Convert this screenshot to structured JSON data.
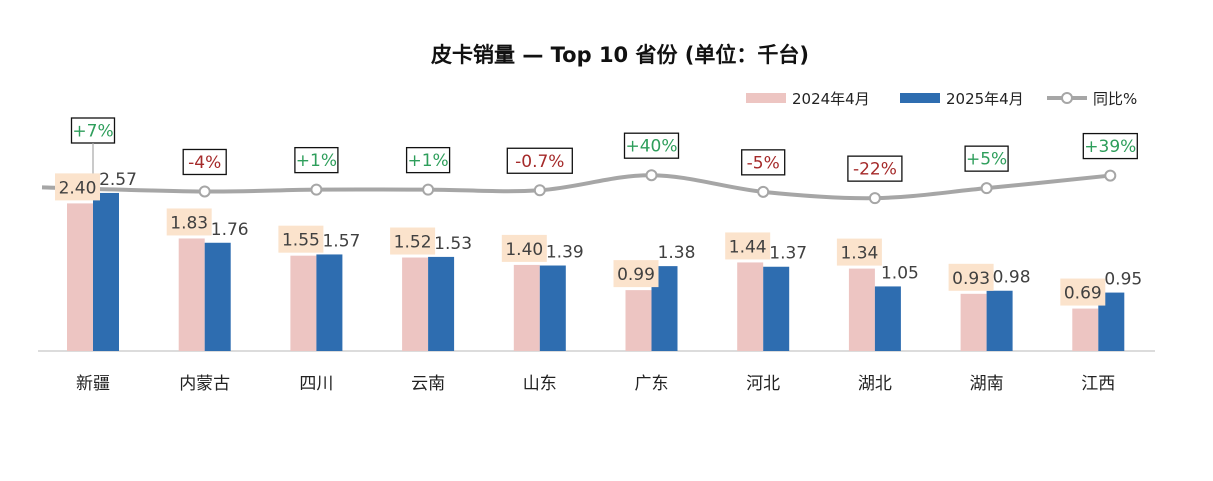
{
  "chart_data": {
    "type": "bar",
    "title": "皮卡销量 — Top 10 省份 (单位：千台)",
    "categories": [
      "新疆",
      "内蒙古",
      "四川",
      "云南",
      "山东",
      "广东",
      "河北",
      "湖北",
      "湖南",
      "江西"
    ],
    "series": [
      {
        "name": "2024年4月",
        "values": [
          2.4,
          1.83,
          1.55,
          1.52,
          1.4,
          0.99,
          1.44,
          1.34,
          0.93,
          0.69
        ],
        "labels": [
          "2.40",
          "1.83",
          "1.55",
          "1.52",
          "1.40",
          "0.99",
          "1.44",
          "1.34",
          "0.93",
          "0.69"
        ],
        "color": "#EDC5C2",
        "label_bg": "#FBE3CC"
      },
      {
        "name": "2025年4月",
        "values": [
          2.57,
          1.76,
          1.57,
          1.53,
          1.39,
          1.38,
          1.37,
          1.05,
          0.98,
          0.95
        ],
        "labels": [
          "2.57",
          "1.76",
          "1.57",
          "1.53",
          "1.39",
          "1.38",
          "1.37",
          "1.05",
          "0.98",
          "0.95"
        ],
        "color": "#2E6DB0"
      }
    ],
    "yoy": {
      "name": "同比%",
      "values": [
        7,
        -4,
        1,
        1,
        -0.7,
        40,
        -5,
        -22,
        5,
        39
      ],
      "labels": [
        "+7%",
        "-4%",
        "+1%",
        "+1%",
        "-0.7%",
        "+40%",
        "-5%",
        "-22%",
        "+5%",
        "+39%"
      ],
      "line_color": "#A6A6A6",
      "positive_color": "#2E9E5B",
      "negative_color": "#A52A2A"
    },
    "legend_position": "top-right",
    "grid": false,
    "ylim": [
      0,
      3
    ]
  }
}
